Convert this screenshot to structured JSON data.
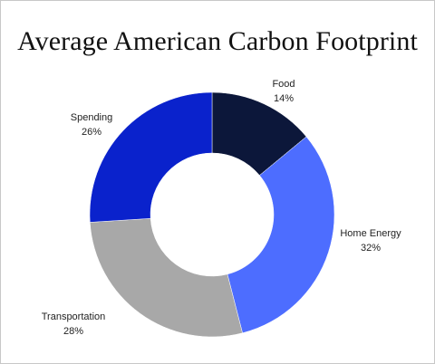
{
  "chart_data": {
    "type": "pie",
    "variant": "donut",
    "title": "Average American Carbon Footprint",
    "categories": [
      "Food",
      "Home Energy",
      "Transportation",
      "Spending"
    ],
    "values": [
      14,
      32,
      28,
      26
    ],
    "value_labels": [
      "14%",
      "32%",
      "28%",
      "26%"
    ],
    "colors": [
      "#0c173a",
      "#4d6dff",
      "#a8a8a8",
      "#0a22cc"
    ],
    "legend": "none",
    "grid": false
  }
}
